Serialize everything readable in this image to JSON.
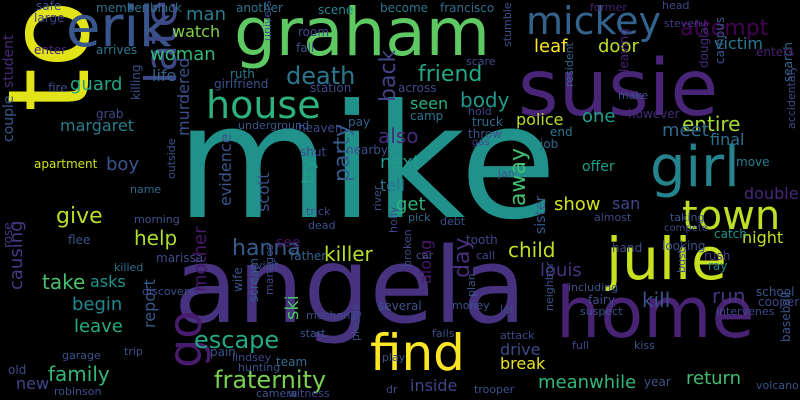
{
  "words": [
    {
      "text": "mike",
      "color": "#21918c"
    },
    {
      "text": "tom",
      "color": "#e3e418"
    },
    {
      "text": "angela",
      "color": "#46327e"
    },
    {
      "text": "susie",
      "color": "#482576"
    },
    {
      "text": "graham",
      "color": "#5ec962"
    },
    {
      "text": "home",
      "color": "#482374"
    },
    {
      "text": "erik",
      "color": "#39568c"
    },
    {
      "text": "julie",
      "color": "#c8e020"
    },
    {
      "text": "girl",
      "color": "#25838e"
    },
    {
      "text": "mickey",
      "color": "#33638d"
    },
    {
      "text": "house",
      "color": "#2db27d"
    },
    {
      "text": "town",
      "color": "#bddf26"
    },
    {
      "text": "later",
      "color": "#3e4989"
    },
    {
      "text": "find",
      "color": "#fde725"
    },
    {
      "text": "go",
      "color": "#481b6d"
    },
    {
      "text": "death",
      "color": "#2a788e"
    },
    {
      "text": "fraternity",
      "color": "#7ad151"
    },
    {
      "text": "woman",
      "color": "#35b779"
    },
    {
      "text": "friend",
      "color": "#22a884"
    },
    {
      "text": "attempt",
      "color": "#440154"
    },
    {
      "text": "escape",
      "color": "#22a884"
    },
    {
      "text": "killer",
      "color": "#b5de2b"
    },
    {
      "text": "body",
      "color": "#1f988b"
    },
    {
      "text": "hanna",
      "color": "#365c8d"
    },
    {
      "text": "child",
      "color": "#c2df23"
    },
    {
      "text": "louis",
      "color": "#46327e"
    },
    {
      "text": "leaf",
      "color": "#fde725"
    },
    {
      "text": "door",
      "color": "#c0df25"
    },
    {
      "text": "victim",
      "color": "#2a788e"
    },
    {
      "text": "entire",
      "color": "#a5db36"
    },
    {
      "text": "party",
      "color": "#365c8d"
    },
    {
      "text": "back",
      "color": "#414487"
    },
    {
      "text": "day",
      "color": "#472d7b"
    },
    {
      "text": "away",
      "color": "#44bf70"
    },
    {
      "text": "meet",
      "color": "#31688e"
    },
    {
      "text": "give",
      "color": "#b8de29"
    },
    {
      "text": "help",
      "color": "#addc30"
    },
    {
      "text": "report",
      "color": "#375a8c"
    },
    {
      "text": "mother",
      "color": "#48186a"
    },
    {
      "text": "murdered",
      "color": "#3b528b"
    },
    {
      "text": "take",
      "color": "#4ac16d"
    },
    {
      "text": "begin",
      "color": "#23888e"
    },
    {
      "text": "leave",
      "color": "#25ac82"
    },
    {
      "text": "family",
      "color": "#35b779"
    },
    {
      "text": "causing",
      "color": "#443983"
    },
    {
      "text": "guard",
      "color": "#20a486"
    },
    {
      "text": "margaret",
      "color": "#287d8e"
    },
    {
      "text": "life",
      "color": "#34618d"
    },
    {
      "text": "watch",
      "color": "#7fd34e"
    },
    {
      "text": "man",
      "color": "#287c8e"
    },
    {
      "text": "next",
      "color": "#1e9b8a"
    },
    {
      "text": "tell",
      "color": "#2c738e"
    },
    {
      "text": "get",
      "color": "#2eb37c"
    },
    {
      "text": "also",
      "color": "#482979"
    },
    {
      "text": "seen",
      "color": "#29af7f"
    },
    {
      "text": "police",
      "color": "#bade28"
    },
    {
      "text": "one",
      "color": "#1f9e89"
    },
    {
      "text": "show",
      "color": "#d2e21b"
    },
    {
      "text": "kill",
      "color": "#3b528b"
    },
    {
      "text": "run",
      "color": "#46337f"
    },
    {
      "text": "return",
      "color": "#40bd72"
    },
    {
      "text": "meanwhile",
      "color": "#33b67a"
    },
    {
      "text": "drive",
      "color": "#3e4989"
    },
    {
      "text": "break",
      "color": "#eae51a"
    },
    {
      "text": "inside",
      "color": "#414487"
    },
    {
      "text": "new",
      "color": "#3f4788"
    },
    {
      "text": "boy",
      "color": "#3a538b"
    },
    {
      "text": "scott",
      "color": "#3b528b"
    },
    {
      "text": "try",
      "color": "#1f9e89"
    },
    {
      "text": "night",
      "color": "#c5e021"
    },
    {
      "text": "final",
      "color": "#2d708e"
    },
    {
      "text": "double",
      "color": "#482979"
    },
    {
      "text": "san",
      "color": "#414487"
    },
    {
      "text": "see",
      "color": "#471164"
    },
    {
      "text": "ski",
      "color": "#4cc26c"
    },
    {
      "text": "along",
      "color": "#48186a"
    },
    {
      "text": "asks",
      "color": "#20928c"
    },
    {
      "text": "offer",
      "color": "#1fa088"
    },
    {
      "text": "sister",
      "color": "#375b8d"
    },
    {
      "text": "student",
      "color": "#482979"
    },
    {
      "text": "couple",
      "color": "#38588c"
    },
    {
      "text": "apartment",
      "color": "#cde11d"
    },
    {
      "text": "evidence",
      "color": "#3a548c"
    },
    {
      "text": "scene",
      "color": "#23888e"
    },
    {
      "text": "another",
      "color": "#2c728e"
    },
    {
      "text": "heaven",
      "color": "#3e4a89"
    },
    {
      "text": "truck",
      "color": "#2f6b8e"
    },
    {
      "text": "camp",
      "color": "#2b748e"
    },
    {
      "text": "throw",
      "color": "#3b528b"
    },
    {
      "text": "end",
      "color": "#2a768e"
    },
    {
      "text": "job",
      "color": "#31678e"
    },
    {
      "text": "however",
      "color": "#472c7a"
    },
    {
      "text": "leaving",
      "color": "#482475"
    },
    {
      "text": "douglas",
      "color": "#472f7d"
    },
    {
      "text": "campus",
      "color": "#39568c"
    },
    {
      "text": "search",
      "color": "#33638d"
    },
    {
      "text": "cooper",
      "color": "#3f4889"
    },
    {
      "text": "school",
      "color": "#3b528b"
    },
    {
      "text": "move",
      "color": "#287d8e"
    },
    {
      "text": "catch",
      "color": "#1f948c"
    },
    {
      "text": "rush",
      "color": "#453882"
    },
    {
      "text": "ray",
      "color": "#23898e"
    },
    {
      "text": "arrives",
      "color": "#2b758e"
    },
    {
      "text": "student2",
      "color": "#482979"
    },
    {
      "text": "safe",
      "color": "#39558c"
    },
    {
      "text": "large",
      "color": "#404688"
    },
    {
      "text": "enter",
      "color": "#482475"
    },
    {
      "text": "fire",
      "color": "#3e4a89"
    },
    {
      "text": "grab",
      "color": "#3f4889"
    },
    {
      "text": "member",
      "color": "#2d718e"
    },
    {
      "text": "black",
      "color": "#2f6c8e"
    },
    {
      "text": "ruth",
      "color": "#2a788e"
    },
    {
      "text": "girlfriend",
      "color": "#3b528b"
    },
    {
      "text": "room",
      "color": "#3e4989"
    },
    {
      "text": "fall",
      "color": "#3d4e8a"
    },
    {
      "text": "station",
      "color": "#3f4889"
    },
    {
      "text": "university",
      "color": "#3a548c"
    },
    {
      "text": "killing",
      "color": "#3b528b"
    },
    {
      "text": "underground",
      "color": "#38588c"
    },
    {
      "text": "pay",
      "color": "#34608d"
    },
    {
      "text": "shut",
      "color": "#3f4788"
    },
    {
      "text": "nearby",
      "color": "#3d4d8a"
    },
    {
      "text": "across",
      "color": "#3f4889"
    },
    {
      "text": "become",
      "color": "#2a778e"
    },
    {
      "text": "francisco",
      "color": "#2e6e8e"
    },
    {
      "text": "scare",
      "color": "#3e4a89"
    },
    {
      "text": "hold",
      "color": "#414487"
    },
    {
      "text": "stumble",
      "color": "#3b528b"
    },
    {
      "text": "resident",
      "color": "#33638d"
    },
    {
      "text": "make",
      "color": "#3b528b"
    },
    {
      "text": "head",
      "color": "#3e4989"
    },
    {
      "text": "former",
      "color": "#482071"
    },
    {
      "text": "steven",
      "color": "#443983"
    },
    {
      "text": "enters",
      "color": "#481f70"
    },
    {
      "text": "accidentaly",
      "color": "#3e4989"
    },
    {
      "text": "outside",
      "color": "#3b528b"
    },
    {
      "text": "name",
      "color": "#30698e"
    },
    {
      "text": "morning",
      "color": "#3b528b"
    },
    {
      "text": "rose",
      "color": "#443983"
    },
    {
      "text": "flee",
      "color": "#3a538b"
    },
    {
      "text": "marissa",
      "color": "#3e4989"
    },
    {
      "text": "killed",
      "color": "#2e6f8e"
    },
    {
      "text": "discovers",
      "color": "#3d4e8a"
    },
    {
      "text": "visit",
      "color": "#3b528b"
    },
    {
      "text": "trip",
      "color": "#3b528b"
    },
    {
      "text": "garage",
      "color": "#3a538b"
    },
    {
      "text": "robinson",
      "color": "#3b528b"
    },
    {
      "text": "old",
      "color": "#3e4989"
    },
    {
      "text": "wife",
      "color": "#3b528b"
    },
    {
      "text": "scream",
      "color": "#34608d"
    },
    {
      "text": "manages",
      "color": "#3e4a89"
    },
    {
      "text": "pain",
      "color": "#3b528b"
    },
    {
      "text": "lindsey",
      "color": "#3f4889"
    },
    {
      "text": "hunting",
      "color": "#3b528b"
    },
    {
      "text": "team",
      "color": "#2f6b8e"
    },
    {
      "text": "camera",
      "color": "#3b528b"
    },
    {
      "text": "witness",
      "color": "#3e4989"
    },
    {
      "text": "start",
      "color": "#3a548c"
    },
    {
      "text": "mechanic",
      "color": "#3f4889"
    },
    {
      "text": "father",
      "color": "#33638d"
    },
    {
      "text": "dead",
      "color": "#3a538b"
    },
    {
      "text": "trick",
      "color": "#3e4a89"
    },
    {
      "text": "river",
      "color": "#3b528b"
    },
    {
      "text": "holly",
      "color": "#3e4989"
    },
    {
      "text": "pick",
      "color": "#2f6c8e"
    },
    {
      "text": "debt",
      "color": "#3b528b"
    },
    {
      "text": "broken",
      "color": "#3e4989"
    },
    {
      "text": "car",
      "color": "#3b528b"
    },
    {
      "text": "call",
      "color": "#3f4889"
    },
    {
      "text": "plan",
      "color": "#3b528b"
    },
    {
      "text": "money",
      "color": "#3a548c"
    },
    {
      "text": "pledge",
      "color": "#3e4989"
    },
    {
      "text": "play",
      "color": "#3b528b"
    },
    {
      "text": "dr",
      "color": "#3e4a89"
    },
    {
      "text": "fails",
      "color": "#3b528b"
    },
    {
      "text": "attack",
      "color": "#3f4889"
    },
    {
      "text": "trooper",
      "color": "#3b528b"
    },
    {
      "text": "let",
      "color": "#3e4989"
    },
    {
      "text": "neighbor",
      "color": "#3b528b"
    },
    {
      "text": "jan",
      "color": "#3a548c"
    },
    {
      "text": "including",
      "color": "#3b528b"
    },
    {
      "text": "fairy",
      "color": "#3e4989"
    },
    {
      "text": "suspect",
      "color": "#3b528b"
    },
    {
      "text": "full",
      "color": "#3f4889"
    },
    {
      "text": "kiss",
      "color": "#3b528b"
    },
    {
      "text": "hand",
      "color": "#3e4a89"
    },
    {
      "text": "looking",
      "color": "#3b528b"
    },
    {
      "text": "almost",
      "color": "#3e4989"
    },
    {
      "text": "taking",
      "color": "#3b528b"
    },
    {
      "text": "compete",
      "color": "#3f4889"
    },
    {
      "text": "bust",
      "color": "#3b528b"
    },
    {
      "text": "intervenes",
      "color": "#3e4989"
    },
    {
      "text": "year",
      "color": "#3b528b"
    },
    {
      "text": "baseball",
      "color": "#3a548c"
    },
    {
      "text": "volcano",
      "color": "#3b528b"
    },
    {
      "text": "tooth",
      "color": "#3e4989"
    },
    {
      "text": "several",
      "color": "#3b528b"
    },
    {
      "text": "gas",
      "color": "#3f4889"
    }
  ]
}
